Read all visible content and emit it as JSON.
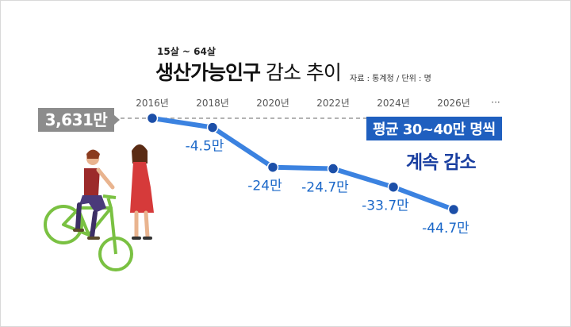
{
  "header": {
    "subtitle": "15살 ~ 64살",
    "title_main": "생산가능인구",
    "title_rest": " 감소 추이",
    "source": "자료 : 통계청 / 단위 : 명"
  },
  "baseline_label": "3,631만",
  "callout": {
    "line1": "평균 30~40만 명씩",
    "line2": "계속 감소"
  },
  "chart_data": {
    "type": "line",
    "x": [
      "2016년",
      "2018년",
      "2020년",
      "2022년",
      "2024년",
      "2026년"
    ],
    "x_extra_tick": "···",
    "series": [
      {
        "values": [
          0,
          -4.5,
          -24,
          -24.7,
          -33.7,
          -44.7
        ]
      }
    ],
    "point_labels": [
      "",
      "-4.5만",
      "-24만",
      "-24.7만",
      "-33.7만",
      "-44.7만"
    ],
    "baseline_value": "3,631만",
    "colors": {
      "line": "#3b82e0",
      "point": "#1c4fa8",
      "baseline": "#9a9a9a"
    }
  },
  "colors": {
    "accent": "#1f5fbf",
    "label": "#1a67c8",
    "tick": "#555555"
  }
}
